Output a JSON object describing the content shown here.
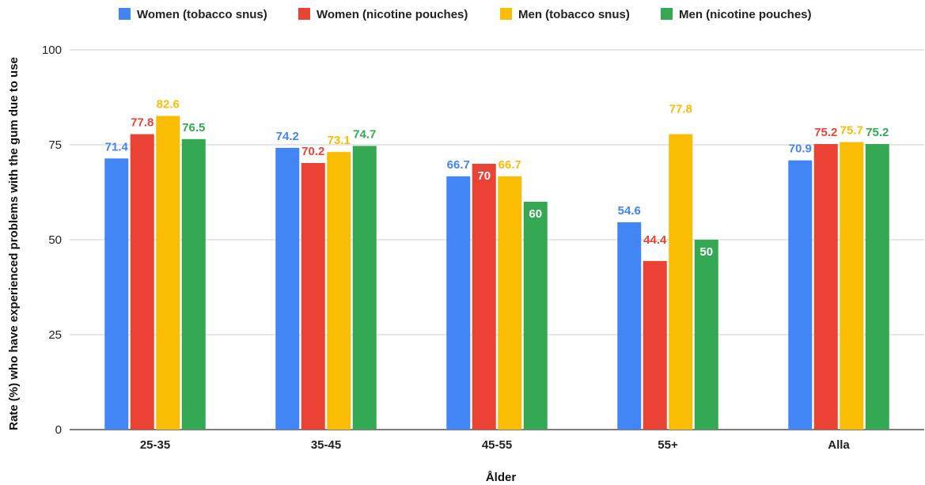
{
  "chart_data": {
    "type": "bar",
    "title": "",
    "xlabel": "Ålder",
    "ylabel": "Rate (%) who have experienced problems with the gum due to use",
    "categories": [
      "25-35",
      "35-45",
      "45-55",
      "55+",
      "Alla"
    ],
    "ylim": [
      0,
      100
    ],
    "yticks": [
      0,
      25,
      50,
      75,
      100
    ],
    "grid": true,
    "legend_position": "top",
    "series": [
      {
        "name": "Women (tobacco snus)",
        "color": "#4285F4",
        "values": [
          71.4,
          74.2,
          66.7,
          54.6,
          70.9
        ],
        "labels": [
          "71.4",
          "74.2",
          "66.7",
          "54.6",
          "70.9"
        ]
      },
      {
        "name": "Women (nicotine pouches)",
        "color": "#EA4335",
        "values": [
          77.8,
          70.2,
          70,
          44.4,
          75.2
        ],
        "labels": [
          "77.8",
          "70.2",
          "70",
          "44.4",
          "75.2"
        ]
      },
      {
        "name": "Men (tobacco snus)",
        "color": "#FBBC04",
        "values": [
          82.6,
          73.1,
          66.7,
          77.8,
          75.7
        ],
        "labels": [
          "82.6",
          "73.1",
          "66.7",
          "77.8",
          "75.7"
        ]
      },
      {
        "name": "Men (nicotine pouches)",
        "color": "#34A853",
        "values": [
          76.5,
          74.7,
          60,
          50,
          75.2
        ],
        "labels": [
          "76.5",
          "74.7",
          "60",
          "50",
          "75.2"
        ]
      }
    ]
  }
}
